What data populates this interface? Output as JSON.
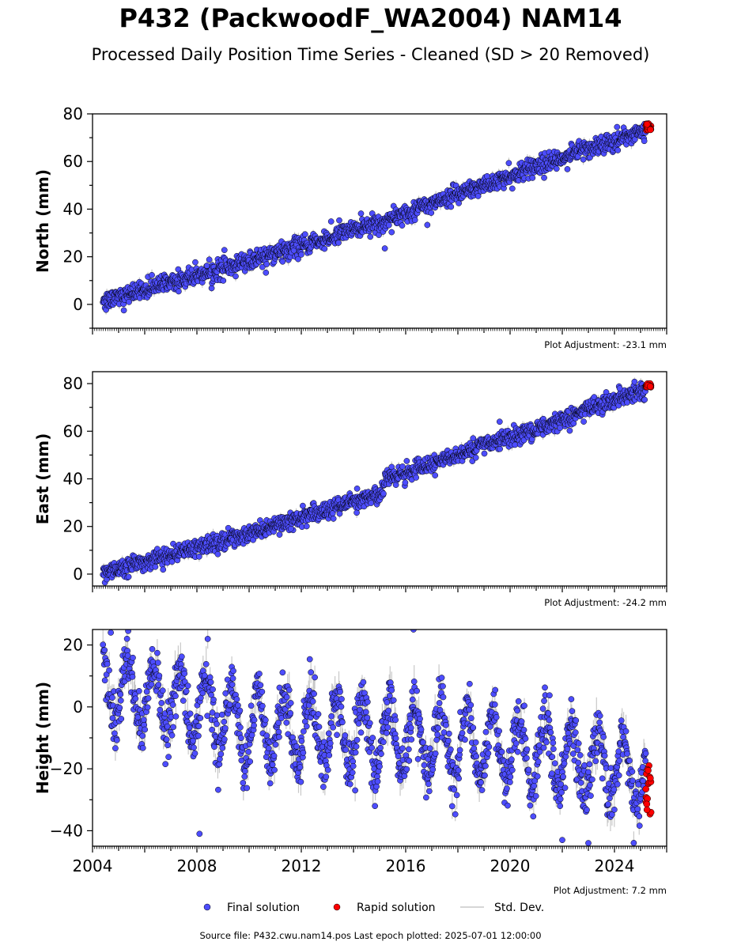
{
  "title": "P432 (PackwoodF_WA2004) NAM14",
  "subtitle": "Processed Daily Position Time Series - Cleaned (SD > 20 Removed)",
  "source": "Source file: P432.cwu.nam14.pos  Last epoch plotted: 2025-07-01 12:00:00",
  "colors": {
    "final": "#4d4dff",
    "rapid": "#ff0000",
    "stddev": "#c8c8c8",
    "edge": "#000000"
  },
  "legend": {
    "placement": "bottom-center",
    "items": [
      {
        "label": "Final solution",
        "marker": "final"
      },
      {
        "label": "Rapid solution",
        "marker": "rapid"
      },
      {
        "label": "Std. Dev.",
        "marker": "stddev"
      }
    ]
  },
  "chart_data": [
    {
      "type": "scatter",
      "ylabel": "North (mm)",
      "xlim": [
        2004.0,
        2026.0
      ],
      "ylim": [
        -10,
        80
      ],
      "yticks": [
        0,
        20,
        40,
        60,
        80
      ],
      "adjustment": "Plot Adjustment: -23.1 mm",
      "series": [
        {
          "name": "Final solution",
          "trend": [
            [
              2004.4,
              1.5
            ],
            [
              2010.0,
              18.0
            ],
            [
              2015.2,
              35.0
            ],
            [
              2018.0,
              46.0
            ],
            [
              2021.0,
              58.0
            ],
            [
              2025.2,
              73.0
            ]
          ],
          "noise": 2.0,
          "outliers": [
            [
              2005.2,
              -2.5
            ],
            [
              2015.2,
              23.5
            ],
            [
              2024.1,
              74.5
            ]
          ]
        },
        {
          "name": "Rapid solution",
          "x_range": [
            2025.2,
            2025.4
          ],
          "values": [
            73.0,
            76.0
          ]
        }
      ]
    },
    {
      "type": "scatter",
      "ylabel": "East (mm)",
      "xlim": [
        2004.0,
        2026.0
      ],
      "ylim": [
        -5,
        85
      ],
      "yticks": [
        0,
        20,
        40,
        60,
        80
      ],
      "adjustment": "Plot Adjustment: -24.2 mm",
      "series": [
        {
          "name": "Final solution",
          "trend": [
            [
              2004.4,
              0.5
            ],
            [
              2010.0,
              17.0
            ],
            [
              2015.15,
              34.0
            ],
            [
              2015.2,
              40.0
            ],
            [
              2018.0,
              50.0
            ],
            [
              2021.0,
              61.0
            ],
            [
              2025.2,
              78.0
            ]
          ],
          "noise": 1.8,
          "outliers": [
            [
              2019.6,
              64.0
            ],
            [
              2024.2,
              78.0
            ],
            [
              2011.6,
              19.0
            ]
          ]
        },
        {
          "name": "Rapid solution",
          "x_range": [
            2025.2,
            2025.4
          ],
          "values": [
            78.5,
            80.0
          ]
        }
      ]
    },
    {
      "type": "scatter",
      "ylabel": "Height (mm)",
      "xlim": [
        2004.0,
        2026.0
      ],
      "ylim": [
        -45,
        25
      ],
      "yticks": [
        -40,
        -20,
        0,
        20
      ],
      "adjustment": "Plot Adjustment: 7.2 mm",
      "xticks": [
        "2004",
        "2008",
        "2012",
        "2016",
        "2020",
        "2024"
      ],
      "xtick_values": [
        2004,
        2008,
        2012,
        2016,
        2020,
        2024
      ],
      "series": [
        {
          "name": "Final solution",
          "trend": [
            [
              2004.4,
              8.0
            ],
            [
              2010.0,
              -6.0
            ],
            [
              2016.0,
              -10.0
            ],
            [
              2020.0,
              -13.0
            ],
            [
              2025.2,
              -22.0
            ]
          ],
          "noise": 4.0,
          "seasonal_amplitude": 11.0,
          "outliers": [
            [
              2008.1,
              -41.0
            ],
            [
              2016.3,
              25.0
            ],
            [
              2022.0,
              -43.0
            ],
            [
              2023.0,
              -44.0
            ],
            [
              2004.7,
              24.0
            ]
          ]
        },
        {
          "name": "Rapid solution",
          "x_range": [
            2025.2,
            2025.4
          ],
          "values": [
            -18.0,
            -35.0
          ]
        }
      ]
    }
  ]
}
